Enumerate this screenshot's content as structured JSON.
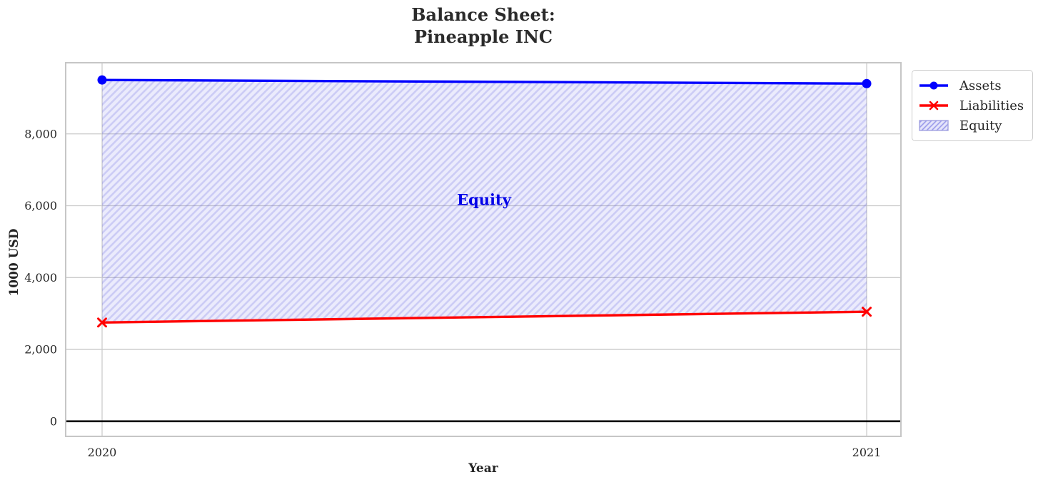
{
  "chart": {
    "title_line1": "Balance Sheet:",
    "title_line2": "Pineapple INC",
    "xlabel": "Year",
    "ylabel": "1000 USD",
    "annotation": "Equity",
    "annotation_color": "#0000e8"
  },
  "chart_data": {
    "type": "line",
    "title": "Balance Sheet: Pineapple INC",
    "x": [
      "2020",
      "2021"
    ],
    "series": [
      {
        "name": "Assets",
        "values": [
          9500,
          9400
        ],
        "color": "#0000ff",
        "marker": "circle"
      },
      {
        "name": "Liabilities",
        "values": [
          2750,
          3050
        ],
        "color": "#ff0000",
        "marker": "x"
      },
      {
        "name": "Equity",
        "values": [
          6750,
          6350
        ],
        "render": "area-between",
        "between": [
          "Liabilities",
          "Assets"
        ],
        "fill": "#e6e6f9",
        "hatch_color": "#c3c3ee",
        "hatch_style": "////"
      }
    ],
    "xlabel": "Year",
    "ylabel": "1000 USD",
    "yticks": [
      "0",
      "2,000",
      "4,000",
      "6,000",
      "8,000"
    ],
    "ytick_values": [
      0,
      2000,
      4000,
      6000,
      8000
    ],
    "ylim": [
      -420,
      9980
    ],
    "grid": true,
    "grid_color": "#cccccc",
    "spine_color": "#c6c6c6",
    "zero_line_color": "#000000",
    "tick_color": "#262626",
    "legend_position": "outside upper right",
    "annotation": {
      "text": "Equity",
      "x_between": [
        "2020",
        "2021"
      ],
      "y": 6150
    }
  }
}
